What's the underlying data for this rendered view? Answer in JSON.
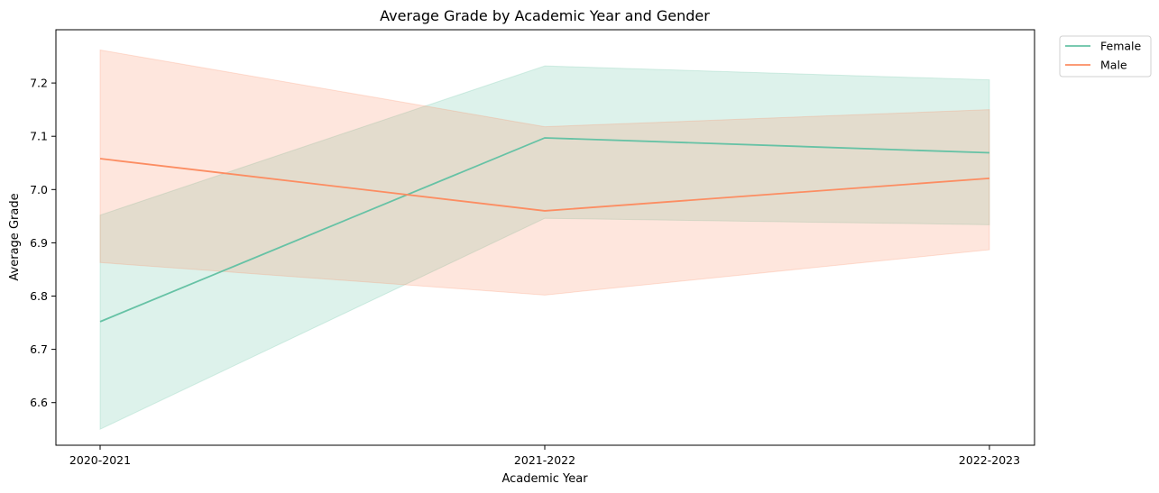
{
  "chart_data": {
    "type": "line",
    "title": "Average Grade by Academic Year and Gender",
    "xlabel": "Academic Year",
    "ylabel": "Average Grade",
    "categories": [
      "2020-2021",
      "2021-2022",
      "2022-2023"
    ],
    "ylim": [
      6.52,
      7.3
    ],
    "yticks": [
      6.6,
      6.7,
      6.8,
      6.9,
      7.0,
      7.1,
      7.2
    ],
    "ytick_labels": [
      "6.6",
      "6.7",
      "6.8",
      "6.9",
      "7.0",
      "7.1",
      "7.2"
    ],
    "grid": false,
    "legend_position": "outside top-right",
    "series": [
      {
        "name": "Female",
        "color": "#66c2a5",
        "values": [
          6.752,
          7.097,
          7.069
        ],
        "ci_lower": [
          6.55,
          6.946,
          6.934
        ],
        "ci_upper": [
          6.952,
          7.232,
          7.206
        ]
      },
      {
        "name": "Male",
        "color": "#fc8d62",
        "values": [
          7.058,
          6.96,
          7.021
        ],
        "ci_lower": [
          6.863,
          6.802,
          6.887
        ],
        "ci_upper": [
          7.262,
          7.118,
          7.15
        ]
      }
    ]
  }
}
